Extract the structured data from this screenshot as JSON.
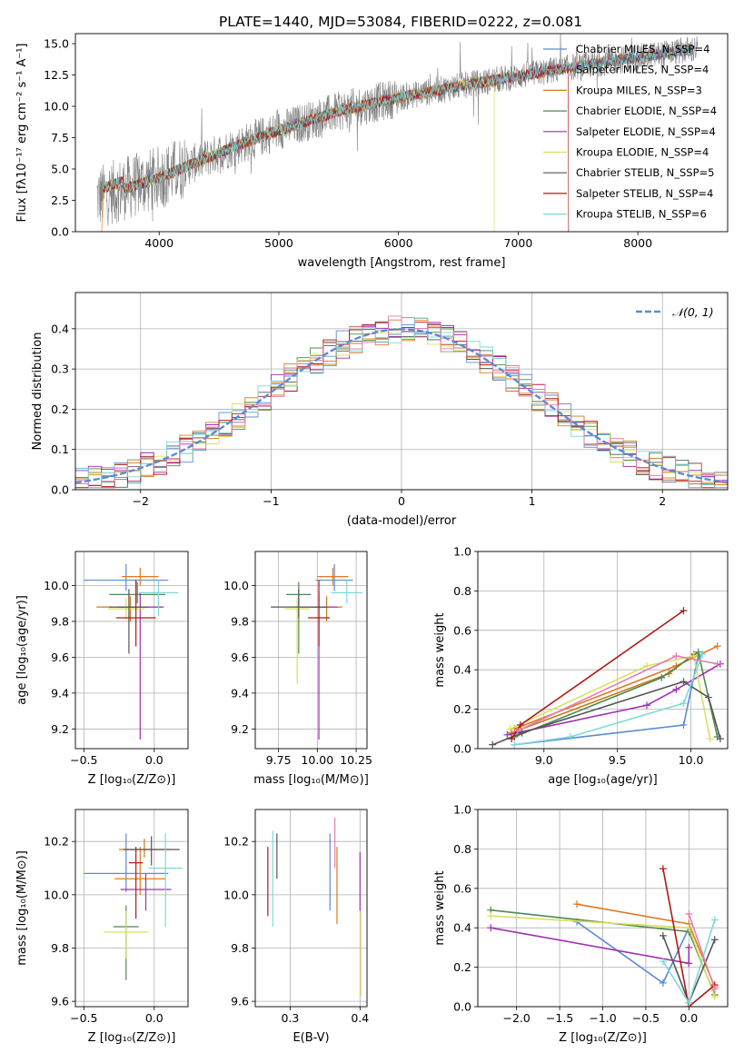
{
  "figure": {
    "title": "PLATE=1440, MJD=53084, FIBERID=0222, z=0.081"
  },
  "chart_data": [
    {
      "id": "spectrum",
      "type": "line",
      "xlabel": "wavelength [Angstrom, rest frame]",
      "ylabel": "Flux [fλ10⁻¹⁷ erg cm⁻² s⁻¹ A⁻¹]",
      "xlim": [
        3300,
        8750
      ],
      "ylim": [
        0,
        15.8
      ],
      "xticks": [
        4000,
        5000,
        6000,
        7000,
        8000
      ],
      "yticks": [
        0.0,
        2.5,
        5.0,
        7.5,
        10.0,
        12.5,
        15.0
      ],
      "grid": false,
      "legend_position": "right",
      "legend": [
        {
          "label": "Chabrier MILES, N_SSP=4",
          "color": "#5b8bd6"
        },
        {
          "label": "Salpeter MILES, N_SSP=4",
          "color": "#e07820"
        },
        {
          "label": "Kroupa MILES, N_SSP=3",
          "color": "#c87a1e"
        },
        {
          "label": "Chabrier ELODIE, N_SSP=4",
          "color": "#4d8a4d"
        },
        {
          "label": "Salpeter ELODIE, N_SSP=4",
          "color": "#a12fb0"
        },
        {
          "label": "Kroupa ELODIE, N_SSP=4",
          "color": "#d8e060"
        },
        {
          "label": "Chabrier STELIB, N_SSP=5",
          "color": "#555555"
        },
        {
          "label": "Salpeter STELIB, N_SSP=4",
          "color": "#b01818"
        },
        {
          "label": "Kroupa STELIB, N_SSP=6",
          "color": "#7fd8d8"
        }
      ],
      "data_trend": {
        "x": [
          3500,
          4000,
          4500,
          5000,
          5500,
          6000,
          6500,
          7000,
          7500,
          8000,
          8500
        ],
        "y": [
          2.8,
          4.3,
          6.3,
          8.1,
          9.6,
          10.7,
          11.6,
          12.4,
          13.2,
          13.9,
          14.6
        ]
      }
    },
    {
      "id": "residuals",
      "type": "histogram",
      "xlabel": "(data-model)/error",
      "ylabel": "Normed distribution",
      "xlim": [
        -2.5,
        2.5
      ],
      "ylim": [
        0,
        0.49
      ],
      "xticks": [
        -2,
        -1,
        0,
        1,
        2
      ],
      "yticks": [
        0.0,
        0.1,
        0.2,
        0.3,
        0.4
      ],
      "grid": true,
      "legend": [
        {
          "label": "𝒩(0, 1)",
          "color": "#5b8bd6",
          "style": "dashed"
        }
      ],
      "legend_position": "top-right"
    },
    {
      "id": "age_vs_Z",
      "type": "errorbar",
      "xlabel": "Z [log₁₀(Z/Z⊙)]",
      "ylabel": "age  [log₁₀(age/yr)]",
      "xlim": [
        -0.56,
        0.24
      ],
      "ylim": [
        9.09,
        10.19
      ],
      "xticks": [
        -0.5,
        0.0
      ],
      "yticks": [
        9.2,
        9.4,
        9.6,
        9.8,
        10.0
      ],
      "grid": true,
      "points": [
        {
          "x": -0.2,
          "y": 10.03,
          "xerr": 0.3,
          "yerr": [
            0.06,
            0.09
          ],
          "color": "#5b8bd6"
        },
        {
          "x": -0.1,
          "y": 10.05,
          "xerr": 0.13,
          "yerr": [
            0.05,
            0.05
          ],
          "color": "#e07820"
        },
        {
          "x": -0.17,
          "y": 9.88,
          "xerr": 0.24,
          "yerr": [
            0.08,
            0.06
          ],
          "color": "#c87a1e"
        },
        {
          "x": -0.12,
          "y": 9.95,
          "xerr": 0.2,
          "yerr": [
            0.05,
            0.07
          ],
          "color": "#4d8a4d"
        },
        {
          "x": -0.1,
          "y": 9.88,
          "xerr": 0.16,
          "yerr": [
            0.74,
            0.08
          ],
          "color": "#a12fb0"
        },
        {
          "x": -0.2,
          "y": 9.87,
          "xerr": 0.13,
          "yerr": [
            0.06,
            0.06
          ],
          "color": "#d8e060"
        },
        {
          "x": -0.18,
          "y": 9.88,
          "xerr": 0.14,
          "yerr": [
            0.26,
            0.1
          ],
          "color": "#555555"
        },
        {
          "x": -0.13,
          "y": 9.82,
          "xerr": 0.14,
          "yerr": [
            0.16,
            0.21
          ],
          "color": "#b01818"
        },
        {
          "x": 0.03,
          "y": 9.96,
          "xerr": 0.14,
          "yerr": [
            0.13,
            0.07
          ],
          "color": "#7fd8d8"
        }
      ]
    },
    {
      "id": "age_vs_mass",
      "type": "errorbar",
      "xlabel": "mass [log₁₀(M/M⊙)]",
      "ylabel": "",
      "xlim": [
        9.6,
        10.32
      ],
      "ylim": [
        9.09,
        10.19
      ],
      "xticks": [
        9.75,
        10.0,
        10.25
      ],
      "yticks": [
        9.2,
        9.4,
        9.6,
        9.8,
        10.0
      ],
      "grid": true,
      "points": [
        {
          "x": 10.11,
          "y": 10.03,
          "xerr": 0.12,
          "yerr": [
            0.06,
            0.09
          ],
          "color": "#5b8bd6"
        },
        {
          "x": 10.1,
          "y": 10.05,
          "xerr": 0.1,
          "yerr": [
            0.05,
            0.05
          ],
          "color": "#e07820"
        },
        {
          "x": 10.06,
          "y": 9.88,
          "xerr": 0.1,
          "yerr": [
            0.08,
            0.06
          ],
          "color": "#c87a1e"
        },
        {
          "x": 9.88,
          "y": 9.95,
          "xerr": 0.08,
          "yerr": [
            0.33,
            0.07
          ],
          "color": "#4d8a4d"
        },
        {
          "x": 10.01,
          "y": 9.88,
          "xerr": 0.12,
          "yerr": [
            0.74,
            0.08
          ],
          "color": "#a12fb0"
        },
        {
          "x": 9.87,
          "y": 9.87,
          "xerr": 0.08,
          "yerr": [
            0.42,
            0.06
          ],
          "color": "#d8e060"
        },
        {
          "x": 9.88,
          "y": 9.88,
          "xerr": 0.18,
          "yerr": [
            0.06,
            0.1
          ],
          "color": "#555555"
        },
        {
          "x": 10.01,
          "y": 9.82,
          "xerr": 0.07,
          "yerr": [
            0.16,
            0.21
          ],
          "color": "#b01818"
        },
        {
          "x": 10.19,
          "y": 9.96,
          "xerr": 0.1,
          "yerr": [
            0.06,
            0.07
          ],
          "color": "#7fd8d8"
        }
      ]
    },
    {
      "id": "weight_vs_age",
      "type": "line",
      "xlabel": "age  [log₁₀(age/yr)]",
      "ylabel": "mass weight",
      "xlim": [
        8.55,
        10.25
      ],
      "ylim": [
        0,
        1.0
      ],
      "xticks": [
        9.0,
        9.5,
        10.0
      ],
      "yticks": [
        0.0,
        0.2,
        0.4,
        0.6,
        0.8,
        1.0
      ],
      "grid": true,
      "series": [
        {
          "color": "#5b8bd6",
          "x": [
            8.8,
            9.95,
            10.05
          ],
          "y": [
            0.02,
            0.12,
            0.47
          ]
        },
        {
          "color": "#e07820",
          "x": [
            8.8,
            9.9,
            10.18
          ],
          "y": [
            0.1,
            0.42,
            0.52
          ]
        },
        {
          "color": "#c87a1e",
          "x": [
            8.78,
            9.85,
            10.02
          ],
          "y": [
            0.08,
            0.38,
            0.48
          ]
        },
        {
          "color": "#4d8a4d",
          "x": [
            8.8,
            9.8,
            10.05,
            10.18
          ],
          "y": [
            0.06,
            0.36,
            0.49,
            0.06
          ]
        },
        {
          "color": "#a12fb0",
          "x": [
            8.75,
            9.7,
            9.9,
            10.2
          ],
          "y": [
            0.07,
            0.22,
            0.3,
            0.43
          ]
        },
        {
          "color": "#d8e060",
          "x": [
            8.77,
            9.7,
            10.02,
            10.13
          ],
          "y": [
            0.1,
            0.42,
            0.47,
            0.05
          ]
        },
        {
          "color": "#555555",
          "x": [
            8.65,
            8.85,
            9.95,
            10.12,
            10.2
          ],
          "y": [
            0.02,
            0.08,
            0.34,
            0.26,
            0.05
          ]
        },
        {
          "color": "#b01818",
          "x": [
            8.78,
            8.84,
            9.95
          ],
          "y": [
            0.05,
            0.12,
            0.7
          ]
        },
        {
          "color": "#7fd8d8",
          "x": [
            8.8,
            9.18,
            9.95,
            10.08
          ],
          "y": [
            0.02,
            0.06,
            0.23,
            0.48
          ]
        },
        {
          "color": "#e080b0",
          "x": [
            8.82,
            9.9,
            10.18
          ],
          "y": [
            0.09,
            0.47,
            0.43
          ]
        }
      ]
    },
    {
      "id": "mass_vs_Z",
      "type": "errorbar",
      "xlabel": "Z [log₁₀(Z/Z⊙)]",
      "ylabel": "mass [log₁₀(M/M⊙)]",
      "xlim": [
        -0.56,
        0.24
      ],
      "ylim": [
        9.58,
        10.32
      ],
      "xticks": [
        -0.5,
        0.0
      ],
      "yticks": [
        9.6,
        9.8,
        10.0,
        10.2
      ],
      "grid": true,
      "points": [
        {
          "x": -0.2,
          "y": 10.08,
          "xerr": 0.3,
          "yerr": [
            0.07,
            0.15
          ],
          "color": "#5b8bd6"
        },
        {
          "x": -0.1,
          "y": 10.06,
          "xerr": 0.18,
          "yerr": [
            0.06,
            0.12
          ],
          "color": "#e07820"
        },
        {
          "x": -0.07,
          "y": 10.17,
          "xerr": 0.18,
          "yerr": [
            0.03,
            0.04
          ],
          "color": "#c87a1e"
        },
        {
          "x": -0.2,
          "y": 9.88,
          "xerr": 0.09,
          "yerr": [
            0.2,
            0.08
          ],
          "color": "#4d8a4d"
        },
        {
          "x": -0.06,
          "y": 10.02,
          "xerr": 0.18,
          "yerr": [
            0.08,
            0.06
          ],
          "color": "#a12fb0"
        },
        {
          "x": -0.2,
          "y": 9.86,
          "xerr": 0.16,
          "yerr": [
            0.1,
            0.08
          ],
          "color": "#d8e060"
        },
        {
          "x": -0.02,
          "y": 10.17,
          "xerr": 0.2,
          "yerr": [
            0.06,
            0.05
          ],
          "color": "#555555"
        },
        {
          "x": -0.13,
          "y": 10.12,
          "xerr": 0.05,
          "yerr": [
            0.21,
            0.06
          ],
          "color": "#b01818"
        },
        {
          "x": 0.08,
          "y": 10.1,
          "xerr": 0.12,
          "yerr": [
            0.22,
            0.13
          ],
          "color": "#7fd8d8"
        }
      ]
    },
    {
      "id": "mass_vs_ebv",
      "type": "errorbar",
      "xlabel": "E(B-V)",
      "ylabel": "",
      "xlim": [
        0.25,
        0.41
      ],
      "ylim": [
        9.58,
        10.32
      ],
      "xticks": [
        0.3,
        0.4
      ],
      "yticks": [
        9.6,
        9.8,
        10.0,
        10.2
      ],
      "grid": true,
      "points": [
        {
          "x": 0.357,
          "y": 10.08,
          "yerr": [
            0.14,
            0.15
          ],
          "color": "#5b8bd6"
        },
        {
          "x": 0.367,
          "y": 10.06,
          "yerr": [
            0.17,
            0.12
          ],
          "color": "#e07820"
        },
        {
          "x": 0.364,
          "y": 10.17,
          "yerr": [
            0.07,
            0.12
          ],
          "color": "#e080b0"
        },
        {
          "x": 0.4,
          "y": 10.05,
          "yerr": [
            0.11,
            0.11
          ],
          "color": "#a12fb0"
        },
        {
          "x": 0.401,
          "y": 9.79,
          "yerr": [
            0.17,
            0.15
          ],
          "color": "#d8e060"
        },
        {
          "x": 0.281,
          "y": 10.16,
          "yerr": [
            0.1,
            0.07
          ],
          "color": "#555555"
        },
        {
          "x": 0.268,
          "y": 10.05,
          "yerr": [
            0.13,
            0.13
          ],
          "color": "#b01818"
        },
        {
          "x": 0.275,
          "y": 10.09,
          "yerr": [
            0.21,
            0.15
          ],
          "color": "#7fd8d8"
        }
      ]
    },
    {
      "id": "weight_vs_Z",
      "type": "line",
      "xlabel": "Z [log₁₀(Z/Z⊙)]",
      "ylabel": "mass weight",
      "xlim": [
        -2.45,
        0.45
      ],
      "ylim": [
        0,
        1.0
      ],
      "xticks": [
        -2.0,
        -1.5,
        -1.0,
        -0.5,
        0.0
      ],
      "yticks": [
        0.0,
        0.2,
        0.4,
        0.6,
        0.8,
        1.0
      ],
      "grid": true,
      "series": [
        {
          "color": "#5b8bd6",
          "x": [
            -1.3,
            -0.3,
            0.0
          ],
          "y": [
            0.43,
            0.12,
            0.4
          ]
        },
        {
          "color": "#e07820",
          "x": [
            -1.3,
            0.0,
            0.3
          ],
          "y": [
            0.52,
            0.42,
            0.1
          ]
        },
        {
          "color": "#4d8a4d",
          "x": [
            -2.3,
            0.0,
            0.3
          ],
          "y": [
            0.49,
            0.38,
            0.06
          ]
        },
        {
          "color": "#a12fb0",
          "x": [
            -2.3,
            0.0,
            0.0
          ],
          "y": [
            0.4,
            0.22,
            0.3
          ]
        },
        {
          "color": "#d8e060",
          "x": [
            -2.3,
            0.0,
            0.3
          ],
          "y": [
            0.46,
            0.4,
            0.05
          ]
        },
        {
          "color": "#555555",
          "x": [
            -0.3,
            0.0,
            0.3
          ],
          "y": [
            0.36,
            0.02,
            0.34
          ]
        },
        {
          "color": "#b01818",
          "x": [
            -0.3,
            0.0,
            0.3
          ],
          "y": [
            0.7,
            0.0,
            0.11
          ]
        },
        {
          "color": "#7fd8d8",
          "x": [
            -0.3,
            0.0,
            0.3
          ],
          "y": [
            0.23,
            0.02,
            0.44
          ]
        },
        {
          "color": "#e080b0",
          "x": [
            0.0,
            0.3
          ],
          "y": [
            0.47,
            0.09
          ]
        }
      ]
    }
  ]
}
